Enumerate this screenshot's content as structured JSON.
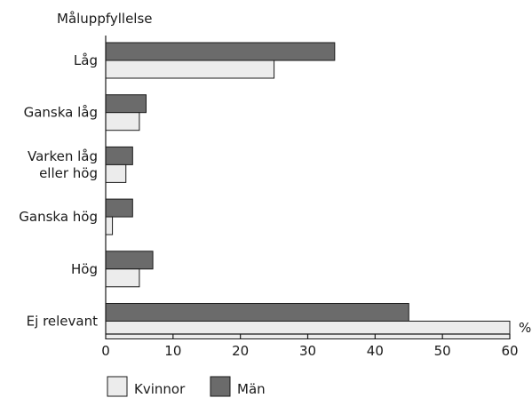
{
  "chart_data": {
    "type": "bar",
    "orientation": "horizontal",
    "title": "Måluppfyllelse",
    "xlabel": "",
    "unit_label": "%",
    "categories": [
      [
        "Låg"
      ],
      [
        "Ganska låg"
      ],
      [
        "Varken låg",
        "eller hög"
      ],
      [
        "Ganska hög"
      ],
      [
        "Hög"
      ],
      [
        "Ej relevant"
      ]
    ],
    "series": [
      {
        "name": "Män",
        "color": "#6b6b6b",
        "values": [
          34,
          6,
          4,
          4,
          7,
          45
        ]
      },
      {
        "name": "Kvinnor",
        "color": "#ececec",
        "values": [
          25,
          5,
          3,
          1,
          5,
          60
        ]
      }
    ],
    "xlim": [
      0,
      60
    ],
    "xticks": [
      0,
      10,
      20,
      30,
      40,
      50,
      60
    ],
    "grid": false,
    "legend_position": "bottom-left"
  }
}
